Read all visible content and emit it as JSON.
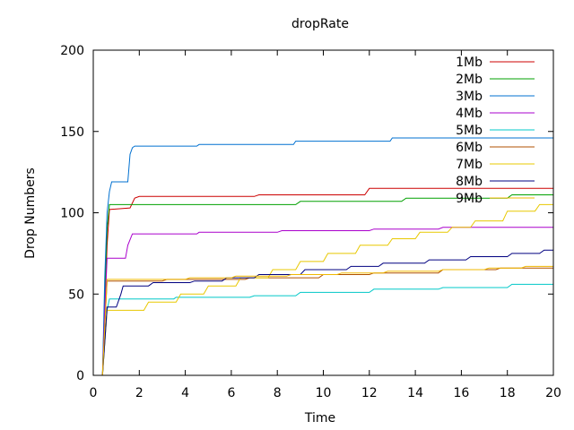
{
  "chart_data": {
    "type": "line",
    "title": "dropRate",
    "xlabel": "Time",
    "ylabel": "Drop Numbers",
    "xlim": [
      0,
      20
    ],
    "ylim": [
      0,
      200
    ],
    "xticks": [
      "0",
      "2",
      "4",
      "6",
      "8",
      "10",
      "12",
      "14",
      "16",
      "18",
      "20"
    ],
    "yticks": [
      "0",
      "50",
      "100",
      "150",
      "200"
    ],
    "grid": false,
    "legend_position": "top-right",
    "series": [
      {
        "name": "1Mb",
        "color": "#cc0000",
        "points": [
          [
            0.4,
            0
          ],
          [
            0.5,
            40
          ],
          [
            0.6,
            80
          ],
          [
            0.7,
            102
          ],
          [
            1.6,
            103
          ],
          [
            1.8,
            109
          ],
          [
            2.0,
            110
          ],
          [
            7.0,
            110
          ],
          [
            7.2,
            111
          ],
          [
            11.8,
            111
          ],
          [
            12.0,
            115
          ],
          [
            20.0,
            115
          ]
        ]
      },
      {
        "name": "2Mb",
        "color": "#00a000",
        "points": [
          [
            0.4,
            0
          ],
          [
            0.5,
            50
          ],
          [
            0.6,
            90
          ],
          [
            0.7,
            105
          ],
          [
            8.8,
            105
          ],
          [
            9.0,
            107
          ],
          [
            13.4,
            107
          ],
          [
            13.6,
            109
          ],
          [
            18.0,
            109
          ],
          [
            18.2,
            111
          ],
          [
            20.0,
            111
          ]
        ]
      },
      {
        "name": "3Mb",
        "color": "#0070d0",
        "points": [
          [
            0.4,
            0
          ],
          [
            0.5,
            60
          ],
          [
            0.6,
            100
          ],
          [
            0.7,
            113
          ],
          [
            0.8,
            119
          ],
          [
            1.5,
            119
          ],
          [
            1.6,
            136
          ],
          [
            1.7,
            140
          ],
          [
            1.8,
            141
          ],
          [
            4.5,
            141
          ],
          [
            4.6,
            142
          ],
          [
            8.7,
            142
          ],
          [
            8.8,
            144
          ],
          [
            12.9,
            144
          ],
          [
            13.0,
            146
          ],
          [
            20.0,
            146
          ]
        ]
      },
      {
        "name": "4Mb",
        "color": "#aa00cc",
        "points": [
          [
            0.4,
            0
          ],
          [
            0.5,
            40
          ],
          [
            0.6,
            72
          ],
          [
            1.4,
            72
          ],
          [
            1.5,
            80
          ],
          [
            1.7,
            87
          ],
          [
            4.5,
            87
          ],
          [
            4.6,
            88
          ],
          [
            8.0,
            88
          ],
          [
            8.2,
            89
          ],
          [
            12.0,
            89
          ],
          [
            12.2,
            90
          ],
          [
            15.0,
            90
          ],
          [
            15.2,
            91
          ],
          [
            20.0,
            91
          ]
        ]
      },
      {
        "name": "5Mb",
        "color": "#00c8c8",
        "points": [
          [
            0.4,
            0
          ],
          [
            0.5,
            20
          ],
          [
            0.6,
            40
          ],
          [
            0.7,
            47
          ],
          [
            3.5,
            47
          ],
          [
            3.6,
            48
          ],
          [
            6.8,
            48
          ],
          [
            7.0,
            49
          ],
          [
            8.8,
            49
          ],
          [
            9.0,
            51
          ],
          [
            12.0,
            51
          ],
          [
            12.2,
            53
          ],
          [
            15.0,
            53
          ],
          [
            15.2,
            54
          ],
          [
            18.0,
            54
          ],
          [
            18.2,
            56
          ],
          [
            20.0,
            56
          ]
        ]
      },
      {
        "name": "6Mb",
        "color": "#b05000",
        "points": [
          [
            0.4,
            0
          ],
          [
            0.5,
            30
          ],
          [
            0.6,
            58
          ],
          [
            3.0,
            58
          ],
          [
            3.2,
            59
          ],
          [
            6.6,
            59
          ],
          [
            6.8,
            60
          ],
          [
            9.8,
            60
          ],
          [
            10.0,
            62
          ],
          [
            12.0,
            62
          ],
          [
            12.2,
            63
          ],
          [
            15.0,
            63
          ],
          [
            15.2,
            65
          ],
          [
            17.5,
            65
          ],
          [
            17.7,
            66
          ],
          [
            20.0,
            66
          ]
        ]
      },
      {
        "name": "7Mb",
        "color": "#e8c800",
        "points": [
          [
            0.4,
            0
          ],
          [
            0.5,
            20
          ],
          [
            0.6,
            40
          ],
          [
            2.2,
            40
          ],
          [
            2.4,
            45
          ],
          [
            3.6,
            45
          ],
          [
            3.8,
            50
          ],
          [
            4.8,
            50
          ],
          [
            5.0,
            55
          ],
          [
            6.2,
            55
          ],
          [
            6.4,
            60
          ],
          [
            7.6,
            60
          ],
          [
            7.8,
            65
          ],
          [
            8.8,
            65
          ],
          [
            9.0,
            70
          ],
          [
            10.0,
            70
          ],
          [
            10.2,
            75
          ],
          [
            11.4,
            75
          ],
          [
            11.6,
            80
          ],
          [
            12.8,
            80
          ],
          [
            13.0,
            84
          ],
          [
            14.0,
            84
          ],
          [
            14.2,
            88
          ],
          [
            15.4,
            88
          ],
          [
            15.6,
            91
          ],
          [
            16.4,
            91
          ],
          [
            16.6,
            95
          ],
          [
            17.8,
            95
          ],
          [
            18.0,
            101
          ],
          [
            19.2,
            101
          ],
          [
            19.4,
            105
          ],
          [
            20.0,
            105
          ]
        ]
      },
      {
        "name": "8Mb",
        "color": "#000080",
        "points": [
          [
            0.4,
            0
          ],
          [
            0.5,
            20
          ],
          [
            0.6,
            42
          ],
          [
            1.0,
            42
          ],
          [
            1.2,
            50
          ],
          [
            1.3,
            55
          ],
          [
            2.4,
            55
          ],
          [
            2.6,
            57
          ],
          [
            4.2,
            57
          ],
          [
            4.4,
            58
          ],
          [
            5.6,
            58
          ],
          [
            5.8,
            60
          ],
          [
            7.0,
            60
          ],
          [
            7.2,
            62
          ],
          [
            9.0,
            62
          ],
          [
            9.2,
            65
          ],
          [
            11.0,
            65
          ],
          [
            11.2,
            67
          ],
          [
            12.4,
            67
          ],
          [
            12.6,
            69
          ],
          [
            14.4,
            69
          ],
          [
            14.6,
            71
          ],
          [
            16.2,
            71
          ],
          [
            16.4,
            73
          ],
          [
            18.0,
            73
          ],
          [
            18.2,
            75
          ],
          [
            19.4,
            75
          ],
          [
            19.6,
            77
          ],
          [
            20.0,
            77
          ]
        ]
      },
      {
        "name": "9Mb",
        "color": "#f0b800",
        "points": [
          [
            0.4,
            0
          ],
          [
            0.5,
            30
          ],
          [
            0.6,
            59
          ],
          [
            4.0,
            59
          ],
          [
            4.2,
            60
          ],
          [
            6.0,
            60
          ],
          [
            6.2,
            61
          ],
          [
            8.4,
            61
          ],
          [
            8.6,
            62
          ],
          [
            10.6,
            62
          ],
          [
            10.8,
            63
          ],
          [
            12.6,
            63
          ],
          [
            12.8,
            64
          ],
          [
            15.0,
            64
          ],
          [
            15.2,
            65
          ],
          [
            17.0,
            65
          ],
          [
            17.2,
            66
          ],
          [
            18.6,
            66
          ],
          [
            18.8,
            67
          ],
          [
            20.0,
            67
          ]
        ]
      }
    ]
  }
}
